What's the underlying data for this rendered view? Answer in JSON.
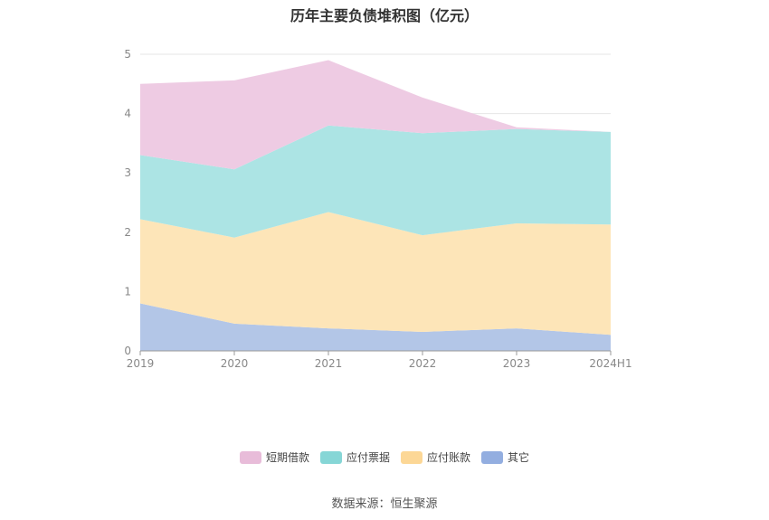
{
  "chart_data": {
    "type": "area",
    "stacked": true,
    "title": "历年主要负债堆积图（亿元）",
    "x": [
      "2019",
      "2020",
      "2021",
      "2022",
      "2023",
      "2024H1"
    ],
    "ylim": [
      0,
      5
    ],
    "yticks": [
      "0",
      "1",
      "2",
      "3",
      "4",
      "5"
    ],
    "grid": true,
    "legend_position": "bottom",
    "series": [
      {
        "name": "其它",
        "values": [
          0.8,
          0.46,
          0.38,
          0.32,
          0.38,
          0.27
        ],
        "color": "#b3c6e7"
      },
      {
        "name": "应付账款",
        "values": [
          1.42,
          1.45,
          1.96,
          1.63,
          1.77,
          1.86
        ],
        "color": "#fde5b8"
      },
      {
        "name": "应付票据",
        "values": [
          1.08,
          1.15,
          1.46,
          1.72,
          1.59,
          1.56
        ],
        "color": "#ace4e4"
      },
      {
        "name": "短期借款",
        "values": [
          1.2,
          1.5,
          1.1,
          0.6,
          0.03,
          0.0
        ],
        "color": "#eecbe3"
      }
    ],
    "legend": [
      {
        "name": "短期借款",
        "color": "#e8bcd9"
      },
      {
        "name": "应付票据",
        "color": "#86d6d6"
      },
      {
        "name": "应付账款",
        "color": "#fcd796"
      },
      {
        "name": "其它",
        "color": "#93aee0"
      }
    ]
  },
  "source_text": "数据来源：恒生聚源"
}
